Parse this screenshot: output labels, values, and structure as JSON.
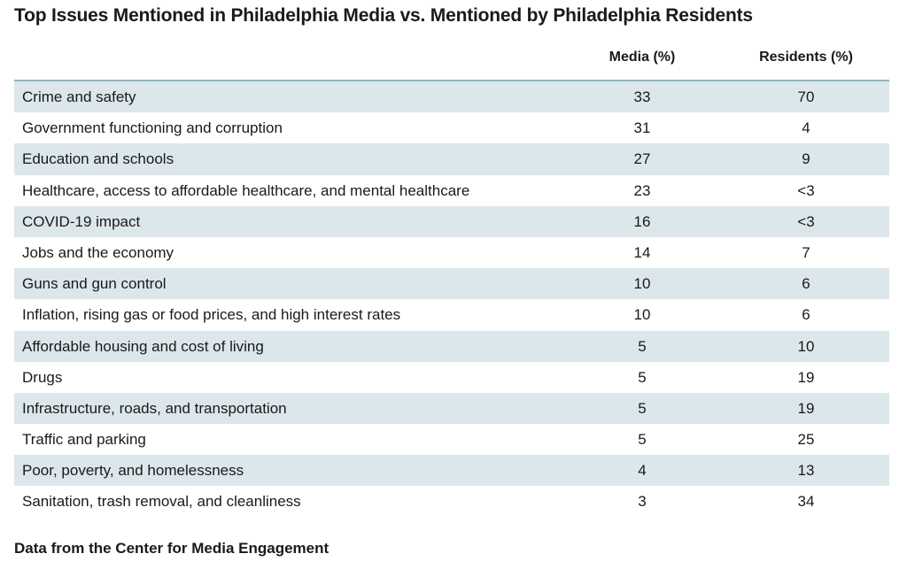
{
  "title": "Top Issues Mentioned in Philadelphia Media vs. Mentioned by Philadelphia Residents",
  "table": {
    "columns": [
      "Media (%)",
      "Residents (%)"
    ],
    "rows": [
      [
        "Crime and safety",
        33,
        70
      ],
      [
        "Government functioning and corruption",
        31,
        4
      ],
      [
        "Education and schools",
        27,
        9
      ],
      [
        "Healthcare, access to affordable healthcare, and mental healthcare",
        23,
        "<3"
      ],
      [
        "COVID-19 impact",
        16,
        "<3"
      ],
      [
        "Jobs and the economy",
        14,
        7
      ],
      [
        "Guns and gun control",
        10,
        6
      ],
      [
        "Inflation, rising gas or food prices, and high interest rates",
        10,
        6
      ],
      [
        "Affordable housing and cost of living",
        5,
        10
      ],
      [
        "Drugs",
        5,
        19
      ],
      [
        "Infrastructure, roads, and transportation",
        5,
        19
      ],
      [
        "Traffic and parking",
        5,
        25
      ],
      [
        "Poor, poverty, and homelessness",
        4,
        13
      ],
      [
        "Sanitation, trash removal, and cleanliness",
        3,
        34
      ]
    ]
  },
  "footer": "Data from the Center for Media Engagement"
}
